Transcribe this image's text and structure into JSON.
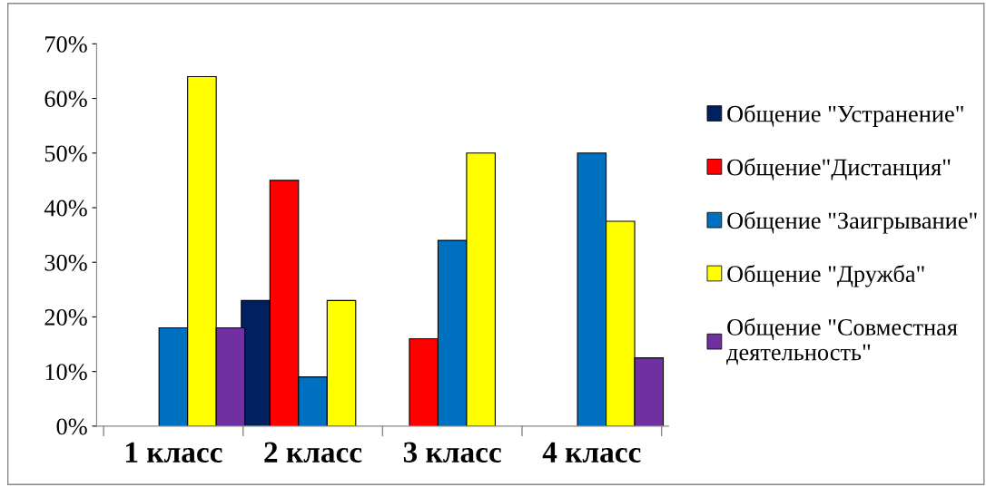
{
  "chart_data": {
    "type": "bar",
    "categories": [
      "1 класс",
      "2 класс",
      "3 класс",
      "4 класс"
    ],
    "series": [
      {
        "name": "Общение \"Устранение\"",
        "color": "#002060",
        "values": [
          null,
          23,
          null,
          null
        ]
      },
      {
        "name": "Общение\"Дистанция\"",
        "color": "#ff0000",
        "values": [
          null,
          45,
          16,
          null
        ]
      },
      {
        "name": "Общение \"Заигрывание\"",
        "color": "#0070c0",
        "values": [
          18,
          9,
          34,
          50
        ]
      },
      {
        "name": "Общение \"Дружба\"",
        "color": "#ffff00",
        "values": [
          64,
          23,
          50,
          37.5
        ]
      },
      {
        "name": "Общение \"Совместная деятельность\"",
        "color": "#7030a0",
        "values": [
          18,
          null,
          null,
          12.5
        ]
      }
    ],
    "ylim": [
      0,
      70
    ],
    "yticks": [
      {
        "value": 0,
        "label": "0%"
      },
      {
        "value": 10,
        "label": "10%"
      },
      {
        "value": 20,
        "label": "20%"
      },
      {
        "value": 30,
        "label": "30%"
      },
      {
        "value": 40,
        "label": "40%"
      },
      {
        "value": 50,
        "label": "50%"
      },
      {
        "value": 60,
        "label": "60%"
      },
      {
        "value": 70,
        "label": "70%"
      }
    ],
    "grid": false,
    "legend": "right"
  }
}
